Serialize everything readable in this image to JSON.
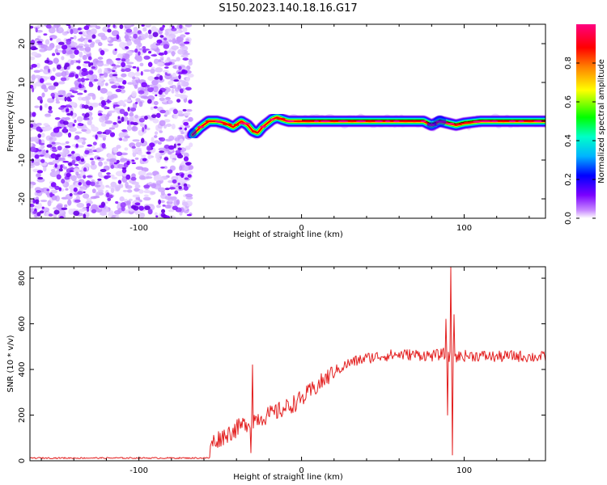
{
  "title": "S150.2023.140.18.16.G17",
  "colors": {
    "signal": "#e32020",
    "colormap": [
      "#ffffff",
      "#c98cff",
      "#7a00ff",
      "#0000ff",
      "#00b4ff",
      "#00ffc8",
      "#00ff00",
      "#ffff00",
      "#ff8000",
      "#ff0000",
      "#ff0080"
    ]
  },
  "chart_data": [
    {
      "type": "heatmap",
      "name": "spectrogram",
      "xlabel": "Height of straight line (km)",
      "ylabel": "Frequency (Hz)",
      "xlim": [
        -167,
        150
      ],
      "ylim": [
        -25,
        25
      ],
      "x_ticks": [
        -100,
        0,
        100
      ],
      "y_ticks": [
        -20,
        -10,
        0,
        10,
        20
      ],
      "grid": false,
      "colorbar": {
        "label": "Normalized spectral amplitude",
        "range": [
          0,
          1
        ],
        "ticks": [
          "0.0",
          "0.2",
          "0.4",
          "0.6",
          "0.8"
        ]
      },
      "noise_region_x": [
        -167,
        -68
      ],
      "ridge": {
        "x": [
          -67,
          -62,
          -57,
          -52,
          -47,
          -42,
          -37,
          -33,
          -30,
          -27,
          -24,
          -21,
          -18,
          -15,
          -12,
          -8,
          -4,
          0,
          20,
          40,
          60,
          75,
          80,
          85,
          90,
          95,
          100,
          110,
          120,
          130,
          140,
          150
        ],
        "freq": [
          -3.5,
          -1.5,
          0,
          0,
          -0.5,
          -1.5,
          0,
          -1,
          -2.5,
          -3,
          -1.5,
          -0.5,
          0.5,
          1,
          0.5,
          0,
          0,
          0,
          0,
          0,
          0,
          0,
          -1,
          0,
          -0.5,
          -1,
          -0.5,
          0,
          0,
          0,
          0,
          0
        ]
      }
    },
    {
      "type": "line",
      "name": "snr",
      "xlabel": "Height of straight line (km)",
      "ylabel": "SNR (10 * v/v)",
      "xlim": [
        -167,
        150
      ],
      "ylim": [
        0,
        850
      ],
      "x_ticks": [
        -100,
        0,
        100
      ],
      "y_ticks": [
        0,
        200,
        400,
        600,
        800
      ],
      "grid": false,
      "envelope": {
        "x": [
          -167,
          -57,
          -55,
          -50,
          -40,
          -30,
          -20,
          -10,
          0,
          10,
          20,
          30,
          40,
          50,
          60,
          70,
          80,
          85,
          88,
          90,
          92,
          93,
          95,
          100,
          110,
          120,
          130,
          140,
          150
        ],
        "y": [
          12,
          12,
          80,
          100,
          140,
          180,
          200,
          230,
          270,
          330,
          390,
          430,
          450,
          460,
          465,
          465,
          460,
          465,
          470,
          450,
          460,
          470,
          455,
          460,
          460,
          455,
          460,
          455,
          455
        ]
      },
      "noise_amplitude": 18,
      "spikes": [
        {
          "x": -30,
          "y": 420
        },
        {
          "x": -31,
          "y": 35
        },
        {
          "x": 89,
          "y": 620
        },
        {
          "x": 90,
          "y": 200
        },
        {
          "x": 92,
          "y": 850
        },
        {
          "x": 93,
          "y": 25
        },
        {
          "x": 94,
          "y": 640
        }
      ]
    }
  ]
}
